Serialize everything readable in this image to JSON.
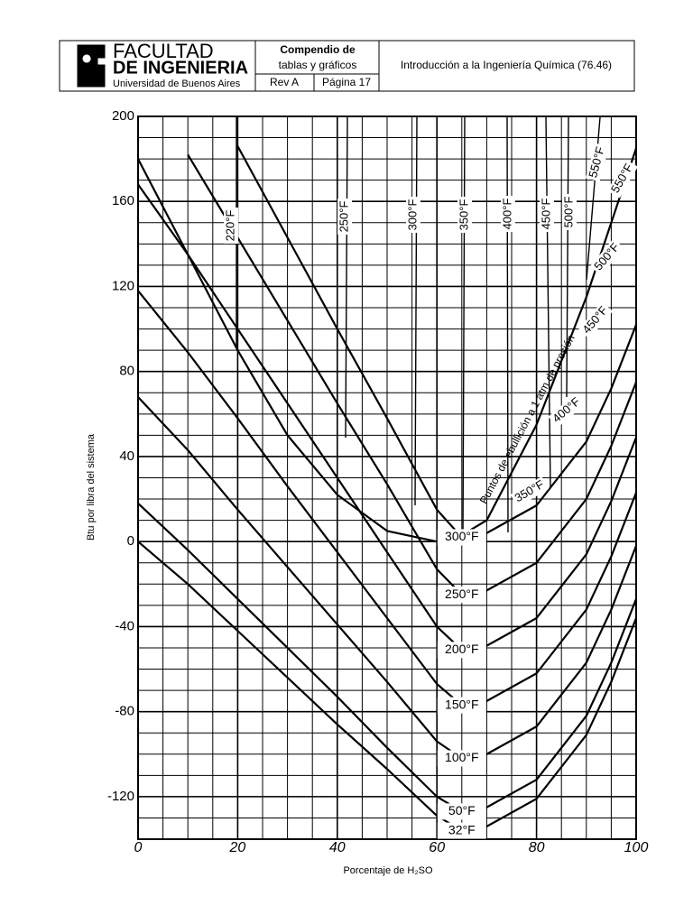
{
  "header": {
    "logo_line1": "FACULTAD",
    "logo_line2": "DE INGENIERIA",
    "logo_line3": "Universidad de Buenos Aires",
    "doc_title_1": "Compendio de",
    "doc_title_2": "tablas y gráficos",
    "revision": "Rev A",
    "page": "Página 17",
    "course": "Introducción a la Ingeniería Química (76.46)"
  },
  "chart_data": {
    "type": "line",
    "xlabel": "Porcentaje de H₂SO",
    "ylabel": "Btu por libra del sistema",
    "x": [
      0,
      10,
      20,
      30,
      40,
      50,
      60,
      65,
      70,
      80,
      90,
      95,
      100
    ],
    "xlim": [
      0,
      100
    ],
    "xticks": [
      0,
      20,
      40,
      60,
      80,
      100
    ],
    "ylim": [
      -140,
      200
    ],
    "yticks": [
      -120,
      -80,
      -40,
      0,
      40,
      80,
      120,
      160,
      200
    ],
    "grid": true,
    "series": [
      {
        "name": "32°F",
        "color": "#000000",
        "values": [
          0,
          -20,
          -42,
          -64,
          -86,
          -107,
          -129,
          -136,
          -134,
          -121,
          -91,
          -66,
          -36
        ]
      },
      {
        "name": "50°F",
        "color": "#000000",
        "values": [
          18,
          -4,
          -27,
          -50,
          -73,
          -97,
          -120,
          -127,
          -125,
          -112,
          -82,
          -57,
          -27
        ]
      },
      {
        "name": "100°F",
        "color": "#000000",
        "values": [
          68,
          43,
          15,
          -12,
          -39,
          -66,
          -94,
          -102,
          -100,
          -87,
          -57,
          -32,
          -2
        ]
      },
      {
        "name": "150°F",
        "color": "#000000",
        "values": [
          118,
          89,
          58,
          26,
          -5,
          -36,
          -67,
          -77,
          -75,
          -62,
          -32,
          -7,
          23
        ]
      },
      {
        "name": "200°F",
        "color": "#000000",
        "values": [
          168,
          135,
          100,
          65,
          30,
          -5,
          -40,
          -51,
          -49,
          -36,
          -6,
          19,
          49
        ]
      },
      {
        "name": "250°F",
        "color": "#000000",
        "values": [
          null,
          182,
          143,
          104,
          65,
          27,
          -13,
          -25,
          -23,
          -10,
          20,
          45,
          75
        ]
      },
      {
        "name": "300°F",
        "color": "#000000",
        "values": [
          null,
          null,
          186,
          143,
          100,
          58,
          15,
          2,
          4,
          17,
          47,
          72,
          102
        ]
      },
      {
        "name": "Puntos de ebullición a 1 atm de presión",
        "color": "#000000",
        "values": [
          180,
          135,
          90,
          50,
          22,
          5,
          0,
          3,
          10,
          55,
          115,
          150,
          185
        ]
      }
    ],
    "annotations": [
      "220°F",
      "250°F",
      "300°F",
      "350°F",
      "400°F",
      "450°F",
      "500°F",
      "550°F",
      "550°F",
      "500°F",
      "450°F",
      "400°F",
      "350°F"
    ]
  }
}
